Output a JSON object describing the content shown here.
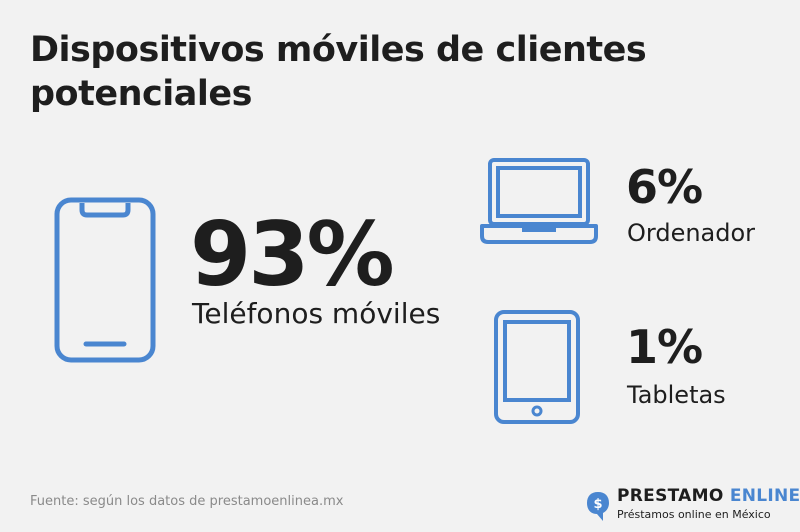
{
  "title": "Dispositivos móviles de clientes potenciales",
  "chart_data": {
    "type": "table",
    "categories": [
      "Teléfonos móviles",
      "Ordenador",
      "Tabletas"
    ],
    "values": [
      93,
      6,
      1
    ],
    "value_labels": [
      "93%",
      "6%",
      "1%"
    ],
    "icons": [
      "smartphone-icon",
      "laptop-icon",
      "tablet-icon"
    ]
  },
  "source": "Fuente: según los datos de prestamoenlinea.mx",
  "brand": {
    "name_part1": "PRESTAMO ",
    "name_part2": "ENLINEA",
    "tagline": "Préstamos online en México",
    "logo_symbol": "$"
  },
  "colors": {
    "accent": "#4a86d0",
    "text": "#1e1e1e",
    "background": "#f2f2f2",
    "muted": "#8a8a8a"
  }
}
